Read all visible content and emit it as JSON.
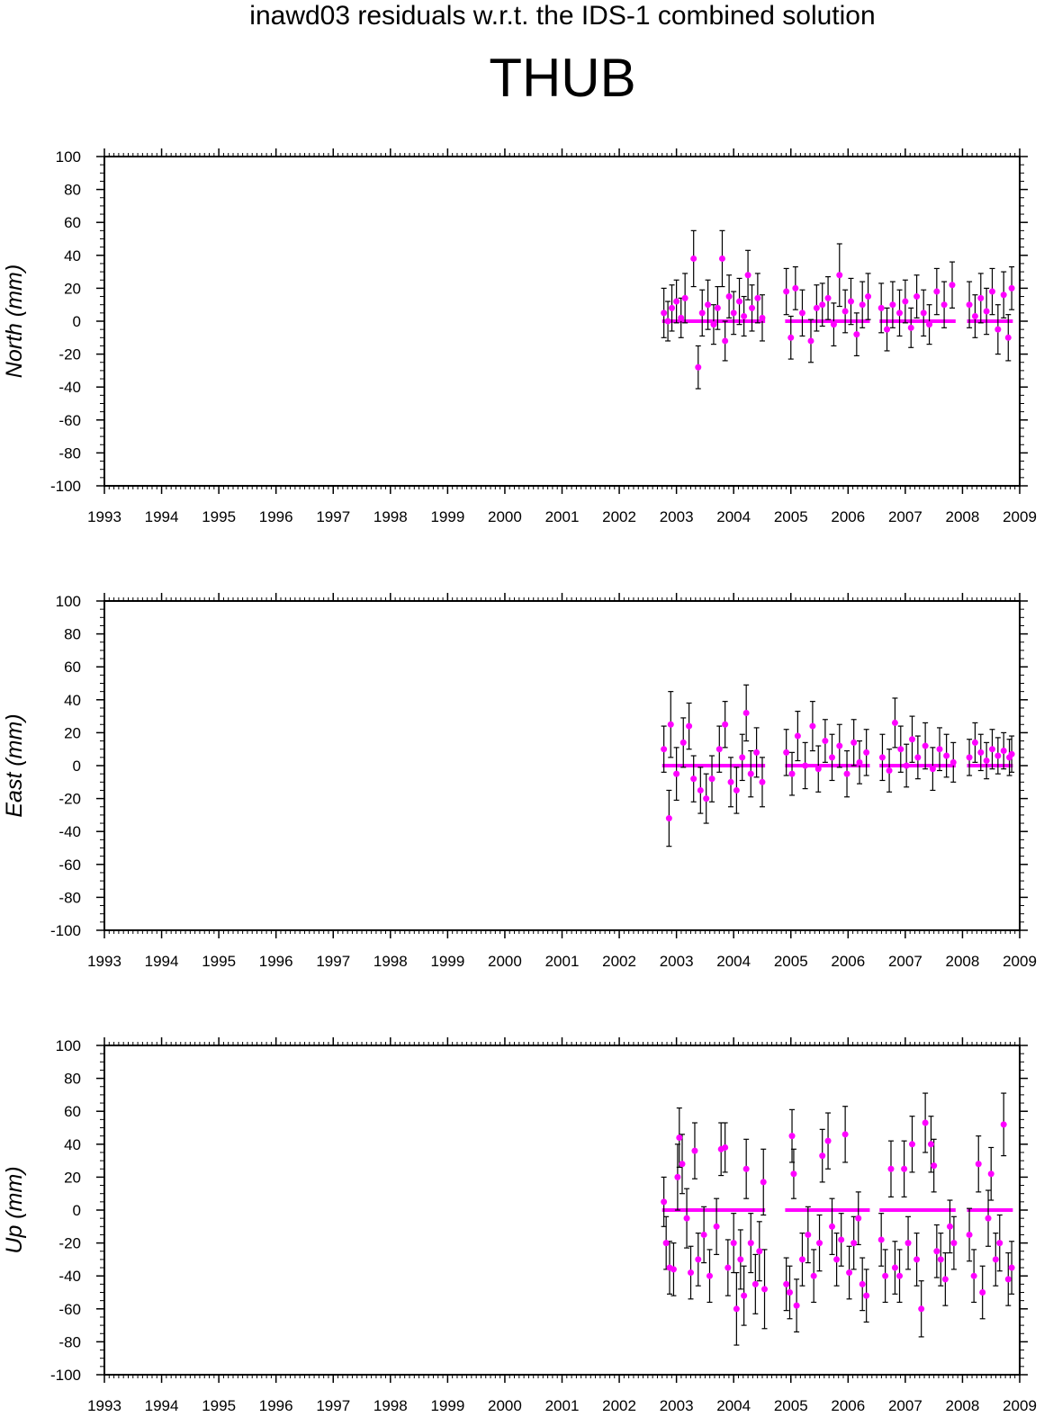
{
  "figure": {
    "subtitle": "inawd03 residuals w.r.t. the IDS-1 combined solution",
    "title": "THUB"
  },
  "colors": {
    "points": "#ff00ff",
    "errorbars": "#000000",
    "axes": "#000000"
  },
  "chart_data": [
    {
      "type": "scatter",
      "name": "north",
      "ylabel": "North (mm)",
      "xlim": [
        1993,
        2009
      ],
      "ylim": [
        -100,
        100
      ],
      "xticks": [
        "1993",
        "1994",
        "1995",
        "1996",
        "1997",
        "1998",
        "1999",
        "2000",
        "2001",
        "2002",
        "2003",
        "2004",
        "2005",
        "2006",
        "2007",
        "2008",
        "2009"
      ],
      "yticks": [
        "100",
        "80",
        "60",
        "40",
        "20",
        "0",
        "-20",
        "-40",
        "-60",
        "-80",
        "-100"
      ],
      "segments": [
        [
          2002.75,
          2004.55
        ],
        [
          2004.9,
          2006.38
        ],
        [
          2006.55,
          2007.88
        ],
        [
          2008.08,
          2008.88
        ]
      ],
      "points": [
        {
          "x": 2002.78,
          "y": 5,
          "e": 15
        },
        {
          "x": 2002.85,
          "y": 0,
          "e": 12
        },
        {
          "x": 2002.92,
          "y": 8,
          "e": 14
        },
        {
          "x": 2003.0,
          "y": 12,
          "e": 13
        },
        {
          "x": 2003.08,
          "y": 2,
          "e": 12
        },
        {
          "x": 2003.15,
          "y": 14,
          "e": 15
        },
        {
          "x": 2003.3,
          "y": 38,
          "e": 17
        },
        {
          "x": 2003.38,
          "y": -28,
          "e": 13
        },
        {
          "x": 2003.45,
          "y": 5,
          "e": 14
        },
        {
          "x": 2003.55,
          "y": 10,
          "e": 15
        },
        {
          "x": 2003.65,
          "y": -2,
          "e": 12
        },
        {
          "x": 2003.72,
          "y": 8,
          "e": 13
        },
        {
          "x": 2003.8,
          "y": 38,
          "e": 17
        },
        {
          "x": 2003.85,
          "y": -12,
          "e": 12
        },
        {
          "x": 2003.92,
          "y": 15,
          "e": 13
        },
        {
          "x": 2004.0,
          "y": 5,
          "e": 13
        },
        {
          "x": 2004.1,
          "y": 12,
          "e": 14
        },
        {
          "x": 2004.18,
          "y": 3,
          "e": 12
        },
        {
          "x": 2004.25,
          "y": 28,
          "e": 15
        },
        {
          "x": 2004.32,
          "y": 8,
          "e": 14
        },
        {
          "x": 2004.42,
          "y": 14,
          "e": 15
        },
        {
          "x": 2004.5,
          "y": 2,
          "e": 14
        },
        {
          "x": 2004.92,
          "y": 18,
          "e": 14
        },
        {
          "x": 2005.0,
          "y": -10,
          "e": 13
        },
        {
          "x": 2005.08,
          "y": 20,
          "e": 13
        },
        {
          "x": 2005.2,
          "y": 5,
          "e": 14
        },
        {
          "x": 2005.35,
          "y": -12,
          "e": 13
        },
        {
          "x": 2005.45,
          "y": 8,
          "e": 14
        },
        {
          "x": 2005.55,
          "y": 10,
          "e": 13
        },
        {
          "x": 2005.65,
          "y": 14,
          "e": 13
        },
        {
          "x": 2005.75,
          "y": -2,
          "e": 13
        },
        {
          "x": 2005.85,
          "y": 28,
          "e": 19
        },
        {
          "x": 2005.95,
          "y": 6,
          "e": 13
        },
        {
          "x": 2006.05,
          "y": 12,
          "e": 14
        },
        {
          "x": 2006.15,
          "y": -8,
          "e": 13
        },
        {
          "x": 2006.25,
          "y": 10,
          "e": 14
        },
        {
          "x": 2006.35,
          "y": 15,
          "e": 14
        },
        {
          "x": 2006.58,
          "y": 8,
          "e": 15
        },
        {
          "x": 2006.68,
          "y": -5,
          "e": 13
        },
        {
          "x": 2006.78,
          "y": 10,
          "e": 14
        },
        {
          "x": 2006.9,
          "y": 5,
          "e": 14
        },
        {
          "x": 2007.0,
          "y": 12,
          "e": 13
        },
        {
          "x": 2007.1,
          "y": -4,
          "e": 12
        },
        {
          "x": 2007.2,
          "y": 15,
          "e": 13
        },
        {
          "x": 2007.32,
          "y": 5,
          "e": 14
        },
        {
          "x": 2007.42,
          "y": -2,
          "e": 12
        },
        {
          "x": 2007.55,
          "y": 18,
          "e": 14
        },
        {
          "x": 2007.68,
          "y": 10,
          "e": 14
        },
        {
          "x": 2007.82,
          "y": 22,
          "e": 14
        },
        {
          "x": 2008.12,
          "y": 10,
          "e": 14
        },
        {
          "x": 2008.22,
          "y": 3,
          "e": 13
        },
        {
          "x": 2008.32,
          "y": 14,
          "e": 15
        },
        {
          "x": 2008.42,
          "y": 6,
          "e": 14
        },
        {
          "x": 2008.52,
          "y": 18,
          "e": 14
        },
        {
          "x": 2008.62,
          "y": -5,
          "e": 15
        },
        {
          "x": 2008.72,
          "y": 16,
          "e": 14
        },
        {
          "x": 2008.8,
          "y": -10,
          "e": 14
        },
        {
          "x": 2008.86,
          "y": 20,
          "e": 13
        }
      ]
    },
    {
      "type": "scatter",
      "name": "east",
      "ylabel": "East (mm)",
      "xlim": [
        1993,
        2009
      ],
      "ylim": [
        -100,
        100
      ],
      "xticks": [
        "1993",
        "1994",
        "1995",
        "1996",
        "1997",
        "1998",
        "1999",
        "2000",
        "2001",
        "2002",
        "2003",
        "2004",
        "2005",
        "2006",
        "2007",
        "2008",
        "2009"
      ],
      "yticks": [
        "100",
        "80",
        "60",
        "40",
        "20",
        "0",
        "-20",
        "-40",
        "-60",
        "-80",
        "-100"
      ],
      "segments": [
        [
          2002.75,
          2004.55
        ],
        [
          2004.9,
          2006.38
        ],
        [
          2006.55,
          2007.88
        ],
        [
          2008.08,
          2008.88
        ]
      ],
      "points": [
        {
          "x": 2002.78,
          "y": 10,
          "e": 14
        },
        {
          "x": 2002.87,
          "y": -32,
          "e": 17
        },
        {
          "x": 2002.9,
          "y": 25,
          "e": 20
        },
        {
          "x": 2003.0,
          "y": -5,
          "e": 16
        },
        {
          "x": 2003.12,
          "y": 14,
          "e": 15
        },
        {
          "x": 2003.22,
          "y": 24,
          "e": 14
        },
        {
          "x": 2003.3,
          "y": -8,
          "e": 14
        },
        {
          "x": 2003.42,
          "y": -15,
          "e": 14
        },
        {
          "x": 2003.52,
          "y": -20,
          "e": 15
        },
        {
          "x": 2003.62,
          "y": -8,
          "e": 14
        },
        {
          "x": 2003.75,
          "y": 10,
          "e": 14
        },
        {
          "x": 2003.85,
          "y": 25,
          "e": 14
        },
        {
          "x": 2003.95,
          "y": -10,
          "e": 15
        },
        {
          "x": 2004.05,
          "y": -15,
          "e": 14
        },
        {
          "x": 2004.15,
          "y": 5,
          "e": 14
        },
        {
          "x": 2004.22,
          "y": 32,
          "e": 17
        },
        {
          "x": 2004.3,
          "y": -5,
          "e": 14
        },
        {
          "x": 2004.4,
          "y": 8,
          "e": 15
        },
        {
          "x": 2004.5,
          "y": -10,
          "e": 15
        },
        {
          "x": 2004.92,
          "y": 8,
          "e": 14
        },
        {
          "x": 2005.02,
          "y": -5,
          "e": 13
        },
        {
          "x": 2005.12,
          "y": 18,
          "e": 15
        },
        {
          "x": 2005.25,
          "y": 0,
          "e": 14
        },
        {
          "x": 2005.38,
          "y": 24,
          "e": 15
        },
        {
          "x": 2005.48,
          "y": -2,
          "e": 14
        },
        {
          "x": 2005.6,
          "y": 15,
          "e": 13
        },
        {
          "x": 2005.72,
          "y": 5,
          "e": 14
        },
        {
          "x": 2005.85,
          "y": 12,
          "e": 13
        },
        {
          "x": 2005.98,
          "y": -5,
          "e": 14
        },
        {
          "x": 2006.1,
          "y": 14,
          "e": 14
        },
        {
          "x": 2006.2,
          "y": 2,
          "e": 13
        },
        {
          "x": 2006.32,
          "y": 8,
          "e": 14
        },
        {
          "x": 2006.6,
          "y": 5,
          "e": 14
        },
        {
          "x": 2006.72,
          "y": -3,
          "e": 13
        },
        {
          "x": 2006.82,
          "y": 26,
          "e": 15
        },
        {
          "x": 2006.92,
          "y": 10,
          "e": 14
        },
        {
          "x": 2007.02,
          "y": 0,
          "e": 13
        },
        {
          "x": 2007.12,
          "y": 16,
          "e": 14
        },
        {
          "x": 2007.22,
          "y": 5,
          "e": 13
        },
        {
          "x": 2007.35,
          "y": 12,
          "e": 14
        },
        {
          "x": 2007.48,
          "y": -2,
          "e": 13
        },
        {
          "x": 2007.6,
          "y": 10,
          "e": 13
        },
        {
          "x": 2007.72,
          "y": 6,
          "e": 13
        },
        {
          "x": 2007.84,
          "y": 2,
          "e": 12
        },
        {
          "x": 2008.12,
          "y": 5,
          "e": 11
        },
        {
          "x": 2008.22,
          "y": 14,
          "e": 12
        },
        {
          "x": 2008.32,
          "y": 8,
          "e": 11
        },
        {
          "x": 2008.42,
          "y": 3,
          "e": 11
        },
        {
          "x": 2008.52,
          "y": 10,
          "e": 12
        },
        {
          "x": 2008.62,
          "y": 6,
          "e": 11
        },
        {
          "x": 2008.72,
          "y": 9,
          "e": 11
        },
        {
          "x": 2008.82,
          "y": 5,
          "e": 11
        },
        {
          "x": 2008.86,
          "y": 7,
          "e": 11
        }
      ]
    },
    {
      "type": "scatter",
      "name": "up",
      "ylabel": "Up (mm)",
      "xlim": [
        1993,
        2009
      ],
      "ylim": [
        -100,
        100
      ],
      "xticks": [
        "1993",
        "1994",
        "1995",
        "1996",
        "1997",
        "1998",
        "1999",
        "2000",
        "2001",
        "2002",
        "2003",
        "2004",
        "2005",
        "2006",
        "2007",
        "2008",
        "2009"
      ],
      "yticks": [
        "100",
        "80",
        "60",
        "40",
        "20",
        "0",
        "-20",
        "-40",
        "-60",
        "-80",
        "-100"
      ],
      "segments": [
        [
          2002.75,
          2004.55
        ],
        [
          2004.9,
          2006.38
        ],
        [
          2006.55,
          2007.88
        ],
        [
          2008.08,
          2008.88
        ]
      ],
      "points": [
        {
          "x": 2002.78,
          "y": 5,
          "e": 15
        },
        {
          "x": 2002.82,
          "y": -20,
          "e": 16
        },
        {
          "x": 2002.88,
          "y": -35,
          "e": 16
        },
        {
          "x": 2002.95,
          "y": -36,
          "e": 16
        },
        {
          "x": 2003.02,
          "y": 20,
          "e": 20
        },
        {
          "x": 2003.05,
          "y": 44,
          "e": 18
        },
        {
          "x": 2003.1,
          "y": 28,
          "e": 18
        },
        {
          "x": 2003.18,
          "y": -5,
          "e": 18
        },
        {
          "x": 2003.25,
          "y": -38,
          "e": 16
        },
        {
          "x": 2003.32,
          "y": 36,
          "e": 17
        },
        {
          "x": 2003.38,
          "y": -30,
          "e": 16
        },
        {
          "x": 2003.48,
          "y": -15,
          "e": 17
        },
        {
          "x": 2003.58,
          "y": -40,
          "e": 16
        },
        {
          "x": 2003.7,
          "y": -10,
          "e": 17
        },
        {
          "x": 2003.78,
          "y": 37,
          "e": 16
        },
        {
          "x": 2003.85,
          "y": 38,
          "e": 15
        },
        {
          "x": 2003.9,
          "y": -35,
          "e": 17
        },
        {
          "x": 2004.0,
          "y": -20,
          "e": 18
        },
        {
          "x": 2004.05,
          "y": -60,
          "e": 22
        },
        {
          "x": 2004.12,
          "y": -30,
          "e": 18
        },
        {
          "x": 2004.18,
          "y": -52,
          "e": 18
        },
        {
          "x": 2004.22,
          "y": 25,
          "e": 18
        },
        {
          "x": 2004.3,
          "y": -20,
          "e": 18
        },
        {
          "x": 2004.38,
          "y": -45,
          "e": 18
        },
        {
          "x": 2004.45,
          "y": -25,
          "e": 18
        },
        {
          "x": 2004.52,
          "y": 17,
          "e": 20
        },
        {
          "x": 2004.54,
          "y": -48,
          "e": 24
        },
        {
          "x": 2004.92,
          "y": -45,
          "e": 16
        },
        {
          "x": 2004.98,
          "y": -50,
          "e": 16
        },
        {
          "x": 2005.02,
          "y": 45,
          "e": 16
        },
        {
          "x": 2005.05,
          "y": 22,
          "e": 15
        },
        {
          "x": 2005.1,
          "y": -58,
          "e": 16
        },
        {
          "x": 2005.2,
          "y": -30,
          "e": 16
        },
        {
          "x": 2005.3,
          "y": -15,
          "e": 17
        },
        {
          "x": 2005.4,
          "y": -40,
          "e": 16
        },
        {
          "x": 2005.5,
          "y": -20,
          "e": 17
        },
        {
          "x": 2005.55,
          "y": 33,
          "e": 16
        },
        {
          "x": 2005.65,
          "y": 42,
          "e": 17
        },
        {
          "x": 2005.72,
          "y": -10,
          "e": 17
        },
        {
          "x": 2005.8,
          "y": -30,
          "e": 16
        },
        {
          "x": 2005.88,
          "y": -18,
          "e": 16
        },
        {
          "x": 2005.95,
          "y": 46,
          "e": 17
        },
        {
          "x": 2006.02,
          "y": -38,
          "e": 16
        },
        {
          "x": 2006.1,
          "y": -20,
          "e": 16
        },
        {
          "x": 2006.18,
          "y": -5,
          "e": 16
        },
        {
          "x": 2006.25,
          "y": -45,
          "e": 16
        },
        {
          "x": 2006.32,
          "y": -52,
          "e": 16
        },
        {
          "x": 2006.58,
          "y": -18,
          "e": 16
        },
        {
          "x": 2006.65,
          "y": -40,
          "e": 16
        },
        {
          "x": 2006.75,
          "y": 25,
          "e": 17
        },
        {
          "x": 2006.82,
          "y": -35,
          "e": 16
        },
        {
          "x": 2006.9,
          "y": -40,
          "e": 16
        },
        {
          "x": 2006.98,
          "y": 25,
          "e": 17
        },
        {
          "x": 2007.05,
          "y": -20,
          "e": 16
        },
        {
          "x": 2007.12,
          "y": 40,
          "e": 17
        },
        {
          "x": 2007.2,
          "y": -30,
          "e": 16
        },
        {
          "x": 2007.28,
          "y": -60,
          "e": 17
        },
        {
          "x": 2007.35,
          "y": 53,
          "e": 18
        },
        {
          "x": 2007.45,
          "y": 40,
          "e": 17
        },
        {
          "x": 2007.5,
          "y": 27,
          "e": 16
        },
        {
          "x": 2007.55,
          "y": -25,
          "e": 16
        },
        {
          "x": 2007.62,
          "y": -30,
          "e": 16
        },
        {
          "x": 2007.7,
          "y": -42,
          "e": 16
        },
        {
          "x": 2007.78,
          "y": -10,
          "e": 16
        },
        {
          "x": 2007.85,
          "y": -20,
          "e": 16
        },
        {
          "x": 2008.12,
          "y": -15,
          "e": 16
        },
        {
          "x": 2008.2,
          "y": -40,
          "e": 16
        },
        {
          "x": 2008.28,
          "y": 28,
          "e": 17
        },
        {
          "x": 2008.35,
          "y": -50,
          "e": 16
        },
        {
          "x": 2008.45,
          "y": -5,
          "e": 17
        },
        {
          "x": 2008.5,
          "y": 22,
          "e": 16
        },
        {
          "x": 2008.58,
          "y": -30,
          "e": 16
        },
        {
          "x": 2008.65,
          "y": -20,
          "e": 17
        },
        {
          "x": 2008.72,
          "y": 52,
          "e": 19
        },
        {
          "x": 2008.8,
          "y": -42,
          "e": 16
        },
        {
          "x": 2008.86,
          "y": -35,
          "e": 16
        }
      ]
    }
  ]
}
